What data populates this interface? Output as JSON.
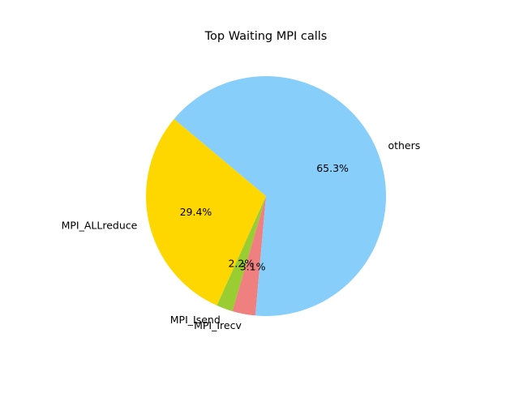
{
  "chart_data": {
    "type": "pie",
    "title": "Top Waiting MPI calls",
    "start_angle_deg": 140,
    "direction": "counterclockwise",
    "slices": [
      {
        "label": "MPI_ALLreduce",
        "value": 29.4,
        "pct_label": "29.4%",
        "color": "#FFD700"
      },
      {
        "label": "MPI_Isend",
        "value": 2.2,
        "pct_label": "2.2%",
        "color": "#9ACD32"
      },
      {
        "label": "MPI_Irecv",
        "value": 3.1,
        "pct_label": "3.1%",
        "color": "#F08080"
      },
      {
        "label": "others",
        "value": 65.3,
        "pct_label": "65.3%",
        "color": "#87CEFA"
      }
    ]
  }
}
